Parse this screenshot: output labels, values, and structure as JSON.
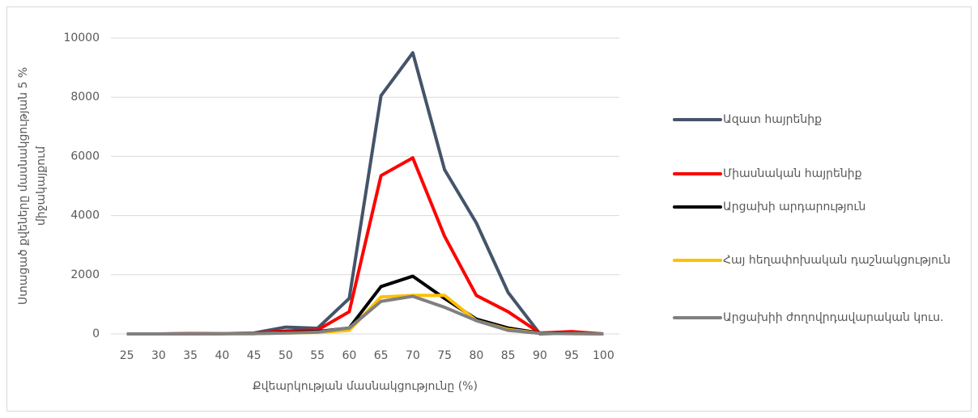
{
  "chart_data": {
    "type": "line",
    "xlabel": "Քվեարկության մասնակցությունը (%)",
    "ylabel": "Ստացած քվեները մասնակցության 5 % միջակայքում",
    "categories": [
      "25",
      "30",
      "35",
      "40",
      "45",
      "50",
      "55",
      "60",
      "65",
      "70",
      "75",
      "80",
      "85",
      "90",
      "95",
      "100"
    ],
    "ylim": [
      0,
      10000
    ],
    "yticks": [
      0,
      2000,
      4000,
      6000,
      8000,
      10000
    ],
    "grid": true,
    "legend": "right",
    "series": [
      {
        "name": "Ազատ հայրենիք",
        "color": "#44546a",
        "values": [
          0,
          0,
          10,
          10,
          30,
          230,
          190,
          1200,
          8050,
          9500,
          5550,
          3750,
          1400,
          0,
          30,
          0
        ]
      },
      {
        "name": "Միասնական հայրենիք",
        "color": "#ff0000",
        "values": [
          0,
          0,
          10,
          10,
          20,
          100,
          130,
          750,
          5350,
          5950,
          3300,
          1300,
          750,
          30,
          80,
          0
        ]
      },
      {
        "name": "Արցախի արդարություն",
        "color": "#000000",
        "values": [
          0,
          0,
          0,
          10,
          10,
          50,
          80,
          200,
          1600,
          1950,
          1200,
          500,
          200,
          30,
          20,
          0
        ]
      },
      {
        "name": "Հայ հեղափոխական դաշնակցություն",
        "color": "#ffc000",
        "values": [
          0,
          0,
          0,
          10,
          10,
          30,
          50,
          120,
          1250,
          1300,
          1300,
          450,
          150,
          20,
          10,
          0
        ]
      },
      {
        "name": "Արցախիի ժողովրդավարական կուս.",
        "color": "#808080",
        "values": [
          0,
          0,
          0,
          10,
          10,
          30,
          60,
          200,
          1100,
          1270,
          900,
          450,
          120,
          20,
          10,
          0
        ]
      }
    ]
  }
}
